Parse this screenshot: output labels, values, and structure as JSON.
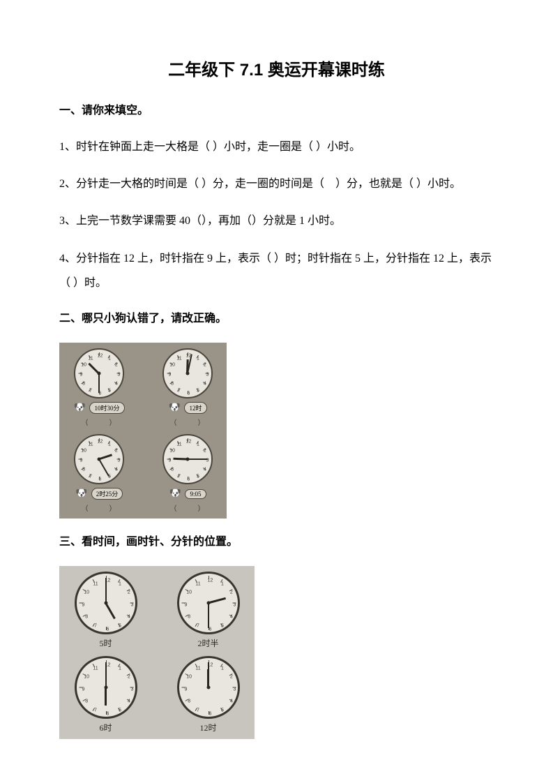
{
  "title": "二年级下 7.1 奥运开幕课时练",
  "section1": {
    "heading": "一、请你来填空。",
    "q1": "1、时针在钟面上走一大格是（ ）小时，走一圈是（ ）小时。",
    "q2": "2、分针走一大格的时间是（ ）分，走一圈的时间是（　）分，也就是（ ）小时。",
    "q3": "3、上完一节数学课需要 40（），再加（）分就是 1 小时。",
    "q4": "4、分针指在 12 上，时针指在 9 上，表示（ ）时；时针指在 5 上，分针指在 12 上，表示（ ）时。"
  },
  "section2": {
    "heading": "二、哪只小狗认错了，请改正确。",
    "paren": "（　　　）",
    "clocks": [
      {
        "hourAngle": 315,
        "minuteAngle": 180,
        "bubble": "10时30分"
      },
      {
        "hourAngle": 2,
        "minuteAngle": 12,
        "bubble": "12时"
      },
      {
        "hourAngle": 72,
        "minuteAngle": 150,
        "bubble": "2时25分"
      },
      {
        "hourAngle": 272,
        "minuteAngle": 90,
        "bubble": "9:05"
      }
    ]
  },
  "section3": {
    "heading": "三、看时间，画时针、分针的位置。",
    "clocks": [
      {
        "hourAngle": 150,
        "minuteAngle": 0,
        "label": "5时"
      },
      {
        "hourAngle": 75,
        "minuteAngle": 180,
        "label": "2时半"
      },
      {
        "hourAngle": 180,
        "minuteAngle": 0,
        "label": "6时"
      },
      {
        "hourAngle": 0,
        "minuteAngle": 0,
        "label": "12时"
      }
    ]
  },
  "colors": {
    "text": "#000000",
    "photo1_bg": "#9a9488",
    "photo2_bg": "#c8c5be",
    "clock_face": "#e8e6df",
    "clock_border": "#4a463e",
    "hand": "#2a261e"
  }
}
